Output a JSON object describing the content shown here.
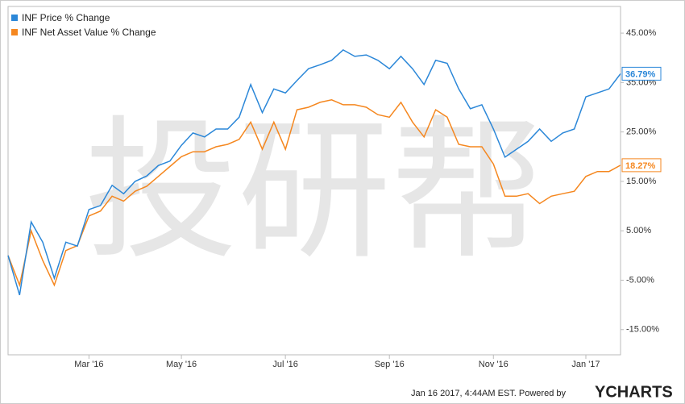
{
  "chart_data": {
    "type": "line",
    "watermark": "投研帮",
    "categories": [
      null,
      null,
      null,
      null,
      null,
      null,
      null,
      "Mar '16",
      null,
      null,
      null,
      null,
      null,
      null,
      null,
      "May '16",
      null,
      null,
      null,
      null,
      null,
      null,
      null,
      null,
      "Jul '16",
      null,
      null,
      null,
      null,
      null,
      null,
      null,
      null,
      "Sep '16",
      null,
      null,
      null,
      null,
      null,
      null,
      null,
      null,
      "Nov '16",
      null,
      null,
      null,
      null,
      null,
      null,
      null,
      "Jan '17",
      null,
      null,
      null
    ],
    "series": [
      {
        "name": "INF Price % Change",
        "color": "#2b87d8",
        "end_label": "36.79%",
        "values": [
          0,
          -8,
          6.8,
          2.7,
          -4.6,
          2.7,
          1.9,
          9.3,
          10.1,
          14.2,
          12.5,
          15,
          16.1,
          18.2,
          19.1,
          22.3,
          24.8,
          24,
          25.6,
          25.6,
          28,
          34.6,
          28.9,
          33.7,
          32.9,
          35.4,
          37.8,
          38.6,
          39.5,
          41.6,
          40.3,
          40.6,
          39.5,
          37.8,
          40.3,
          37.8,
          34.6,
          39.5,
          38.9,
          33.7,
          29.7,
          30.5,
          25.6,
          19.9,
          21.5,
          23.1,
          25.6,
          23.1,
          24.8,
          25.6,
          32.1,
          32.9,
          33.7,
          36.79
        ]
      },
      {
        "name": "INF Net Asset Value % Change",
        "color": "#f5871f",
        "end_label": "18.27%",
        "values": [
          0,
          -6,
          5,
          -1,
          -6,
          1,
          2,
          8,
          9,
          12,
          11,
          13,
          14,
          16,
          18,
          20,
          21,
          21,
          22,
          22.5,
          23.5,
          27,
          21.5,
          27,
          21.5,
          29.5,
          30,
          31,
          31.5,
          30.5,
          30.5,
          30,
          28.5,
          28,
          31,
          27,
          24,
          29.5,
          28,
          22.5,
          22,
          22,
          18.5,
          12,
          12,
          12.5,
          10.5,
          12,
          12.5,
          13,
          16,
          17,
          17,
          18.27
        ]
      }
    ],
    "ylim": [
      -20.1,
      50.4
    ],
    "yticks": [
      {
        "value": 45,
        "label": "45.00%"
      },
      {
        "value": 35,
        "label": "35.00%"
      },
      {
        "value": 25,
        "label": "25.00%"
      },
      {
        "value": 15,
        "label": "15.00%"
      },
      {
        "value": 5,
        "label": "5.00%"
      },
      {
        "value": -5,
        "label": "-5.00%"
      },
      {
        "value": -15,
        "label": "-15.00%"
      }
    ],
    "grid": false,
    "legend": "top-left",
    "footer": "Jan 16 2017, 4:44AM EST.  Powered by",
    "logo": "YCHARTS"
  }
}
